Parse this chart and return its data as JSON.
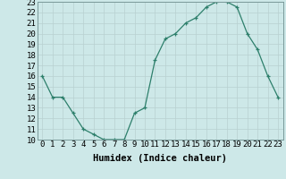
{
  "x": [
    0,
    1,
    2,
    3,
    4,
    5,
    6,
    7,
    8,
    9,
    10,
    11,
    12,
    13,
    14,
    15,
    16,
    17,
    18,
    19,
    20,
    21,
    22,
    23
  ],
  "y": [
    16,
    14,
    14,
    12.5,
    11,
    10.5,
    10,
    10,
    10,
    12.5,
    13,
    17.5,
    19.5,
    20,
    21,
    21.5,
    22.5,
    23,
    23,
    22.5,
    20,
    18.5,
    16,
    14
  ],
  "line_color": "#2d7f6b",
  "marker": "+",
  "bg_color": "#cde8e8",
  "grid_color": "#b8d0d0",
  "xlabel": "Humidex (Indice chaleur)",
  "xlim": [
    -0.5,
    23.5
  ],
  "ylim": [
    10,
    23
  ],
  "xticks": [
    0,
    1,
    2,
    3,
    4,
    5,
    6,
    7,
    8,
    9,
    10,
    11,
    12,
    13,
    14,
    15,
    16,
    17,
    18,
    19,
    20,
    21,
    22,
    23
  ],
  "yticks": [
    10,
    11,
    12,
    13,
    14,
    15,
    16,
    17,
    18,
    19,
    20,
    21,
    22,
    23
  ],
  "tick_fontsize": 6.5,
  "xlabel_fontsize": 7.5
}
